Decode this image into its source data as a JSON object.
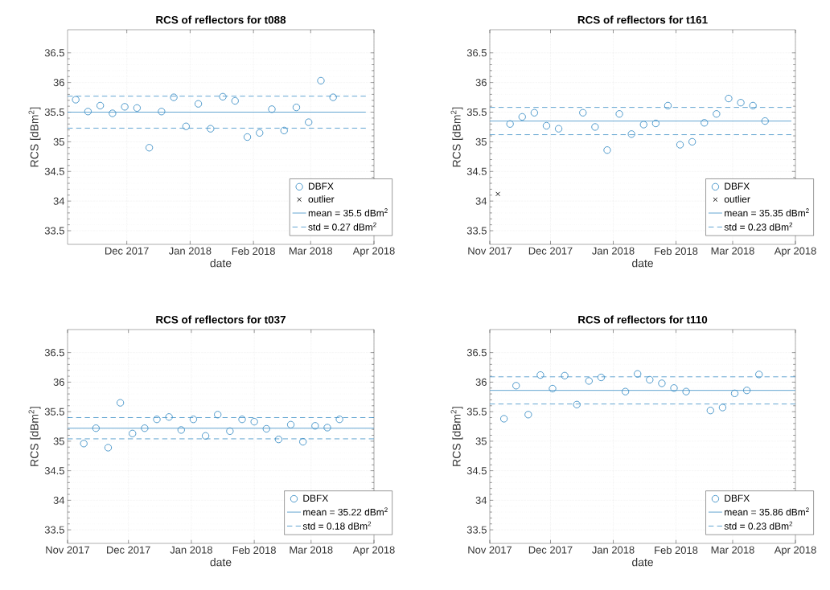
{
  "chart_data": [
    {
      "type": "scatter",
      "title": "RCS of reflectors for t088",
      "xlabel": "date",
      "ylabel": "RCS [dBm$^{2}$]",
      "xlim": [
        "2017-11-02",
        "2018-04-01"
      ],
      "ylim": [
        33.27,
        36.89
      ],
      "xticks": [
        {
          "value": "2017-12-01",
          "label": "Dec 2017"
        },
        {
          "value": "2018-01-01",
          "label": "Jan 2018"
        },
        {
          "value": "2018-02-01",
          "label": "Feb 2018"
        },
        {
          "value": "2018-03-01",
          "label": "Mar 2018"
        },
        {
          "value": "2018-04-01",
          "label": "Apr 2018"
        }
      ],
      "yticks": [
        33.5,
        34,
        34.5,
        35,
        35.5,
        36,
        36.5
      ],
      "grid": true,
      "legend": "bottom right",
      "series": [
        {
          "name": "DBFX",
          "marker": "circle",
          "color": "#3d8fc6",
          "x": [
            "2017-11-06",
            "2017-11-12",
            "2017-11-18",
            "2017-11-24",
            "2017-11-30",
            "2017-12-06",
            "2017-12-12",
            "2017-12-18",
            "2017-12-24",
            "2017-12-30",
            "2018-01-05",
            "2018-01-11",
            "2018-01-17",
            "2018-01-23",
            "2018-01-29",
            "2018-02-04",
            "2018-02-10",
            "2018-02-16",
            "2018-02-22",
            "2018-02-28",
            "2018-03-06",
            "2018-03-12"
          ],
          "values": [
            35.71,
            35.51,
            35.61,
            35.48,
            35.59,
            35.57,
            34.9,
            35.51,
            35.75,
            35.26,
            35.64,
            35.22,
            35.76,
            35.69,
            35.08,
            35.15,
            35.55,
            35.19,
            35.58,
            35.33,
            36.03,
            35.75
          ]
        },
        {
          "name": "outlier",
          "marker": "cross",
          "color": "#000000"
        },
        {
          "name": "mean = 35.5 dBm$^{2}$",
          "type": "line",
          "marker": "none",
          "line_style": "solid",
          "color": "#3d8fc6",
          "x": [
            "2017-11-02",
            "2018-03-28"
          ],
          "values": [
            35.5,
            35.5
          ]
        },
        {
          "name": "std = 0.27 dBm$^{2}$",
          "type": "line",
          "marker": "none",
          "line_style": "dashed",
          "color": "#3d8fc6",
          "x": [
            "2017-11-02",
            "2018-03-28"
          ],
          "values": [
            35.77,
            35.77
          ]
        },
        {
          "type": "line",
          "marker": "none",
          "line_style": "dashed",
          "color": "#3d8fc6",
          "x": [
            "2017-11-02",
            "2018-03-28"
          ],
          "values": [
            35.23,
            35.23
          ]
        }
      ]
    },
    {
      "type": "scatter",
      "title": "RCS of reflectors for t161",
      "xlabel": "date",
      "ylabel": "RCS [dBm$^{2}$]",
      "xlim": [
        "2017-11-01",
        "2018-04-01"
      ],
      "ylim": [
        33.27,
        36.89
      ],
      "xticks": [
        {
          "value": "2017-11-01",
          "label": "Nov 2017"
        },
        {
          "value": "2017-12-01",
          "label": "Dec 2017"
        },
        {
          "value": "2018-01-01",
          "label": "Jan 2018"
        },
        {
          "value": "2018-02-01",
          "label": "Feb 2018"
        },
        {
          "value": "2018-03-01",
          "label": "Mar 2018"
        },
        {
          "value": "2018-04-01",
          "label": "Apr 2018"
        }
      ],
      "yticks": [
        33.5,
        34,
        34.5,
        35,
        35.5,
        36,
        36.5
      ],
      "grid": true,
      "legend": "bottom right",
      "series": [
        {
          "name": "DBFX",
          "marker": "circle",
          "color": "#3d8fc6",
          "x": [
            "2017-11-11",
            "2017-11-17",
            "2017-11-23",
            "2017-11-29",
            "2017-12-05",
            "2017-12-17",
            "2017-12-23",
            "2017-12-29",
            "2018-01-04",
            "2018-01-10",
            "2018-01-16",
            "2018-01-22",
            "2018-01-28",
            "2018-02-03",
            "2018-02-09",
            "2018-02-15",
            "2018-02-21",
            "2018-02-27",
            "2018-03-05",
            "2018-03-11",
            "2018-03-17"
          ],
          "values": [
            35.3,
            35.42,
            35.49,
            35.27,
            35.22,
            35.49,
            35.25,
            34.86,
            35.47,
            35.13,
            35.29,
            35.31,
            35.61,
            34.95,
            35.0,
            35.32,
            35.47,
            35.73,
            35.66,
            35.61,
            35.35
          ]
        },
        {
          "name": "outlier",
          "marker": "cross",
          "color": "#000000",
          "x": [
            "2017-11-05"
          ],
          "values": [
            34.12
          ]
        },
        {
          "name": "mean = 35.35 dBm$^{2}$",
          "type": "line",
          "marker": "none",
          "line_style": "solid",
          "color": "#3d8fc6",
          "x": [
            "2017-11-01",
            "2018-03-30"
          ],
          "values": [
            35.35,
            35.35
          ]
        },
        {
          "name": "std = 0.23 dBm$^{2}$",
          "type": "line",
          "marker": "none",
          "line_style": "dashed",
          "color": "#3d8fc6",
          "x": [
            "2017-11-01",
            "2018-03-30"
          ],
          "values": [
            35.58,
            35.58
          ]
        },
        {
          "type": "line",
          "marker": "none",
          "line_style": "dashed",
          "color": "#3d8fc6",
          "x": [
            "2017-11-01",
            "2018-03-30"
          ],
          "values": [
            35.12,
            35.12
          ]
        }
      ]
    },
    {
      "type": "scatter",
      "title": "RCS of reflectors for t037",
      "xlabel": "date",
      "ylabel": "RCS [dBm$^{2}$]",
      "xlim": [
        "2017-11-01",
        "2018-04-01"
      ],
      "ylim": [
        33.27,
        36.89
      ],
      "xticks": [
        {
          "value": "2017-11-01",
          "label": "Nov 2017"
        },
        {
          "value": "2017-12-01",
          "label": "Dec 2017"
        },
        {
          "value": "2018-01-01",
          "label": "Jan 2018"
        },
        {
          "value": "2018-02-01",
          "label": "Feb 2018"
        },
        {
          "value": "2018-03-01",
          "label": "Mar 2018"
        },
        {
          "value": "2018-04-01",
          "label": "Apr 2018"
        }
      ],
      "yticks": [
        33.5,
        34,
        34.5,
        35,
        35.5,
        36,
        36.5
      ],
      "grid": true,
      "legend": "bottom right",
      "series": [
        {
          "name": "DBFX",
          "marker": "circle",
          "color": "#3d8fc6",
          "x": [
            "2017-11-09",
            "2017-11-15",
            "2017-11-21",
            "2017-11-27",
            "2017-12-03",
            "2017-12-09",
            "2017-12-15",
            "2017-12-21",
            "2017-12-27",
            "2018-01-02",
            "2018-01-08",
            "2018-01-14",
            "2018-01-20",
            "2018-01-26",
            "2018-02-01",
            "2018-02-07",
            "2018-02-13",
            "2018-02-19",
            "2018-02-25",
            "2018-03-03",
            "2018-03-09",
            "2018-03-15"
          ],
          "values": [
            34.96,
            35.22,
            34.89,
            35.65,
            35.13,
            35.22,
            35.37,
            35.41,
            35.19,
            35.37,
            35.09,
            35.45,
            35.17,
            35.37,
            35.33,
            35.21,
            35.03,
            35.28,
            34.99,
            35.26,
            35.23,
            35.37
          ]
        },
        {
          "name": "mean = 35.22 dBm$^{2}$",
          "type": "line",
          "marker": "none",
          "line_style": "solid",
          "color": "#3d8fc6",
          "x": [
            "2017-11-01",
            "2018-04-01"
          ],
          "values": [
            35.22,
            35.22
          ]
        },
        {
          "name": "std = 0.18 dBm$^{2}$",
          "type": "line",
          "marker": "none",
          "line_style": "dashed",
          "color": "#3d8fc6",
          "x": [
            "2017-11-01",
            "2018-04-01"
          ],
          "values": [
            35.4,
            35.4
          ]
        },
        {
          "type": "line",
          "marker": "none",
          "line_style": "dashed",
          "color": "#3d8fc6",
          "x": [
            "2017-11-01",
            "2018-04-01"
          ],
          "values": [
            35.04,
            35.04
          ]
        }
      ]
    },
    {
      "type": "scatter",
      "title": "RCS of reflectors for t110",
      "xlabel": "date",
      "ylabel": "RCS [dBm$^{2}$]",
      "xlim": [
        "2017-11-01",
        "2018-04-01"
      ],
      "ylim": [
        33.27,
        36.89
      ],
      "xticks": [
        {
          "value": "2017-11-01",
          "label": "Nov 2017"
        },
        {
          "value": "2017-12-01",
          "label": "Dec 2017"
        },
        {
          "value": "2018-01-01",
          "label": "Jan 2018"
        },
        {
          "value": "2018-02-01",
          "label": "Feb 2018"
        },
        {
          "value": "2018-03-01",
          "label": "Mar 2018"
        },
        {
          "value": "2018-04-01",
          "label": "Apr 2018"
        }
      ],
      "yticks": [
        33.5,
        34,
        34.5,
        35,
        35.5,
        36,
        36.5
      ],
      "grid": true,
      "legend": "bottom right",
      "series": [
        {
          "name": "DBFX",
          "marker": "circle",
          "color": "#3d8fc6",
          "x": [
            "2017-11-08",
            "2017-11-14",
            "2017-11-20",
            "2017-11-26",
            "2017-12-02",
            "2017-12-08",
            "2017-12-14",
            "2017-12-20",
            "2017-12-26",
            "2018-01-07",
            "2018-01-13",
            "2018-01-19",
            "2018-01-25",
            "2018-01-31",
            "2018-02-06",
            "2018-02-18",
            "2018-02-24",
            "2018-03-02",
            "2018-03-08",
            "2018-03-14"
          ],
          "values": [
            35.38,
            35.94,
            35.45,
            36.12,
            35.89,
            36.11,
            35.62,
            36.02,
            36.08,
            35.84,
            36.14,
            36.04,
            35.98,
            35.9,
            35.84,
            35.52,
            35.57,
            35.81,
            35.86,
            36.13
          ]
        },
        {
          "name": "mean = 35.86 dBm$^{2}$",
          "type": "line",
          "marker": "none",
          "line_style": "solid",
          "color": "#3d8fc6",
          "x": [
            "2017-11-01",
            "2018-04-01"
          ],
          "values": [
            35.86,
            35.86
          ]
        },
        {
          "name": "std = 0.23 dBm$^{2}$",
          "type": "line",
          "marker": "none",
          "line_style": "dashed",
          "color": "#3d8fc6",
          "x": [
            "2017-11-01",
            "2018-04-01"
          ],
          "values": [
            36.09,
            36.09
          ]
        },
        {
          "type": "line",
          "marker": "none",
          "line_style": "dashed",
          "color": "#3d8fc6",
          "x": [
            "2017-11-01",
            "2018-04-01"
          ],
          "values": [
            35.63,
            35.63
          ]
        }
      ]
    }
  ]
}
